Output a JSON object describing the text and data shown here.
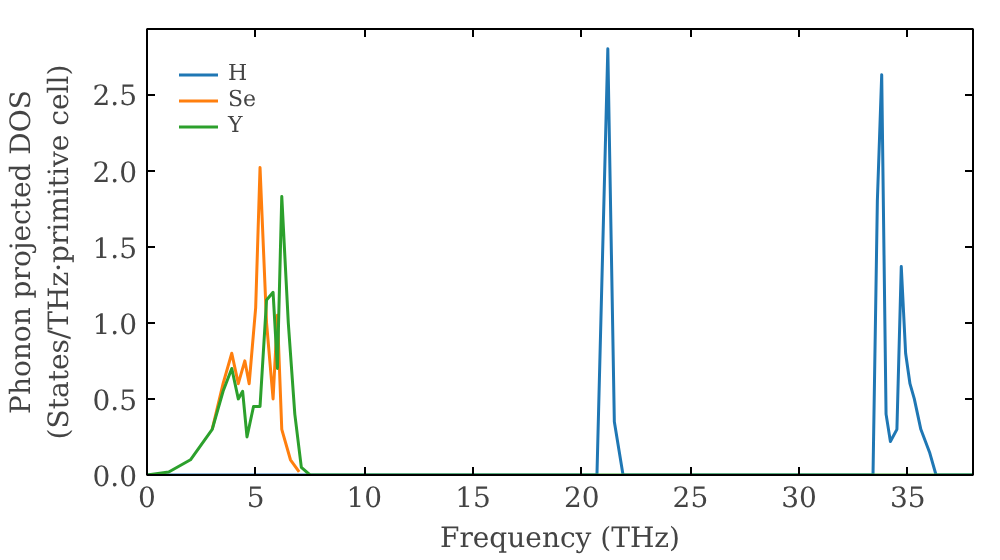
{
  "chart_data": {
    "type": "line",
    "xlabel": "Frequency (THz)",
    "ylabel": "Phonon projected DOS\n(States/THz·primitive cell)",
    "xlim": [
      0,
      38
    ],
    "ylim": [
      0,
      2.93
    ],
    "xticks": [
      0,
      5,
      10,
      15,
      20,
      25,
      30,
      35
    ],
    "yticks": [
      {
        "value": 0,
        "label": "0.0"
      },
      0.5,
      {
        "value": 1,
        "label": "1.0"
      },
      1.5,
      {
        "value": 2,
        "label": "2.0"
      },
      2.5
    ],
    "grid": false,
    "legend": "top left",
    "marker": "none",
    "line_style": "solid",
    "series": [
      {
        "name": "H",
        "color": "#1f77b4",
        "x": [
          0,
          10,
          20.7,
          21.2,
          21.5,
          21.9,
          33.4,
          33.6,
          33.8,
          34.0,
          34.2,
          34.5,
          34.7,
          34.9,
          35.1,
          35.3,
          35.6,
          36.0,
          36.3,
          38
        ],
        "values": [
          0,
          0,
          0,
          2.8,
          0.35,
          0,
          0,
          1.8,
          2.63,
          0.4,
          0.22,
          0.3,
          1.37,
          0.8,
          0.6,
          0.5,
          0.3,
          0.15,
          0,
          0
        ]
      },
      {
        "name": "Se",
        "color": "#ff7f0e",
        "x": [
          3,
          3.5,
          3.9,
          4.2,
          4.5,
          4.7,
          5.0,
          5.2,
          5.5,
          5.8,
          6.0,
          6.2,
          6.6,
          7.0
        ],
        "values": [
          0.3,
          0.6,
          0.8,
          0.6,
          0.75,
          0.6,
          1.1,
          2.02,
          1.0,
          0.5,
          1.05,
          0.3,
          0.1,
          0.02
        ]
      },
      {
        "name": "Y",
        "color": "#2ca02c",
        "x": [
          0,
          1,
          2,
          3,
          3.5,
          3.9,
          4.2,
          4.4,
          4.6,
          4.9,
          5.2,
          5.5,
          5.8,
          6.0,
          6.2,
          6.5,
          6.8,
          7.1,
          7.5,
          38
        ],
        "values": [
          0,
          0.02,
          0.1,
          0.3,
          0.55,
          0.7,
          0.5,
          0.55,
          0.25,
          0.45,
          0.45,
          1.15,
          1.2,
          0.7,
          1.83,
          1.0,
          0.4,
          0.05,
          0,
          0
        ]
      }
    ]
  }
}
